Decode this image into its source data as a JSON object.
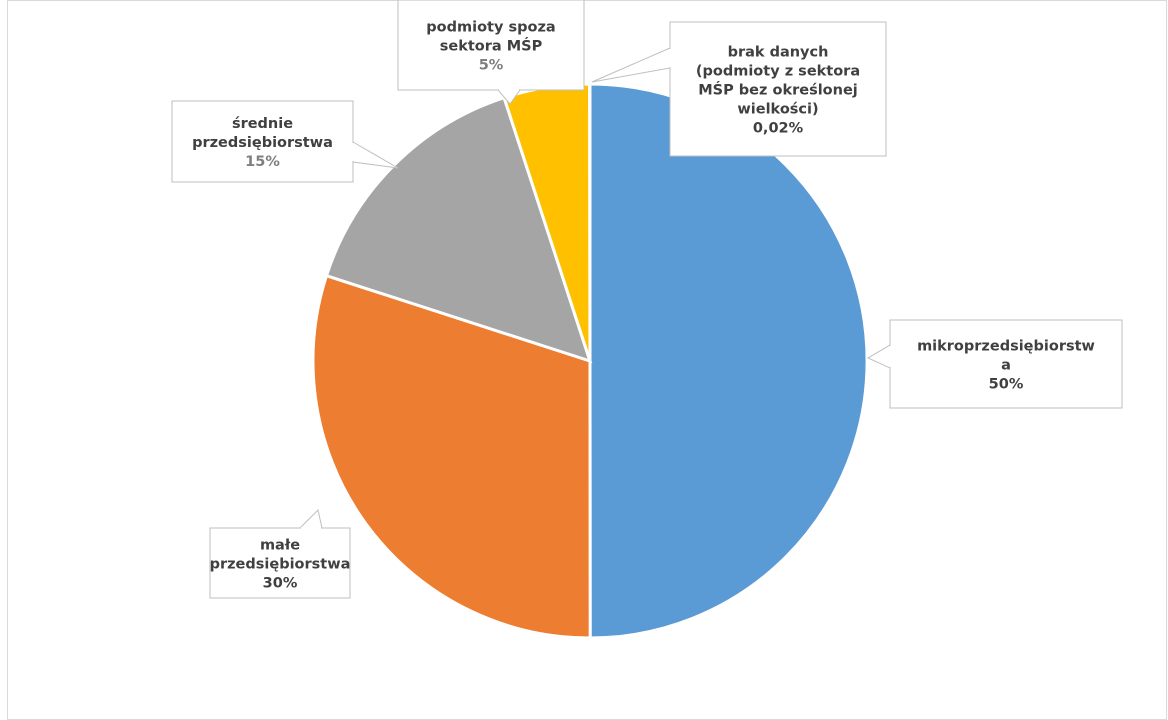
{
  "colors": {
    "mikro": "#5b9bd5",
    "male": "#ed7d31",
    "srednie": "#a5a5a5",
    "spoza": "#ffc000",
    "brak": "#4472c4",
    "label_text": "#404040",
    "value_text_grey": "#7f7f7f"
  },
  "chart_data": {
    "type": "pie",
    "title": "",
    "slices": [
      {
        "key": "mikro",
        "label": [
          "mikroprzedsiębiorstw",
          "a"
        ],
        "value": 50,
        "value_label": "50%"
      },
      {
        "key": "male",
        "label": [
          "małe",
          "przedsiębiorstwa"
        ],
        "value": 30,
        "value_label": "30%"
      },
      {
        "key": "srednie",
        "label": [
          "średnie",
          "przedsiębiorstwa"
        ],
        "value": 15,
        "value_label": "15%"
      },
      {
        "key": "spoza",
        "label": [
          "podmioty spoza",
          "sektora MŚP"
        ],
        "value": 5,
        "value_label": "5%"
      },
      {
        "key": "brak",
        "label": [
          "brak danych",
          "(podmioty z sektora",
          "MŚP bez określonej",
          "wielkości)"
        ],
        "value": 0.02,
        "value_label": "0,02%"
      }
    ]
  }
}
